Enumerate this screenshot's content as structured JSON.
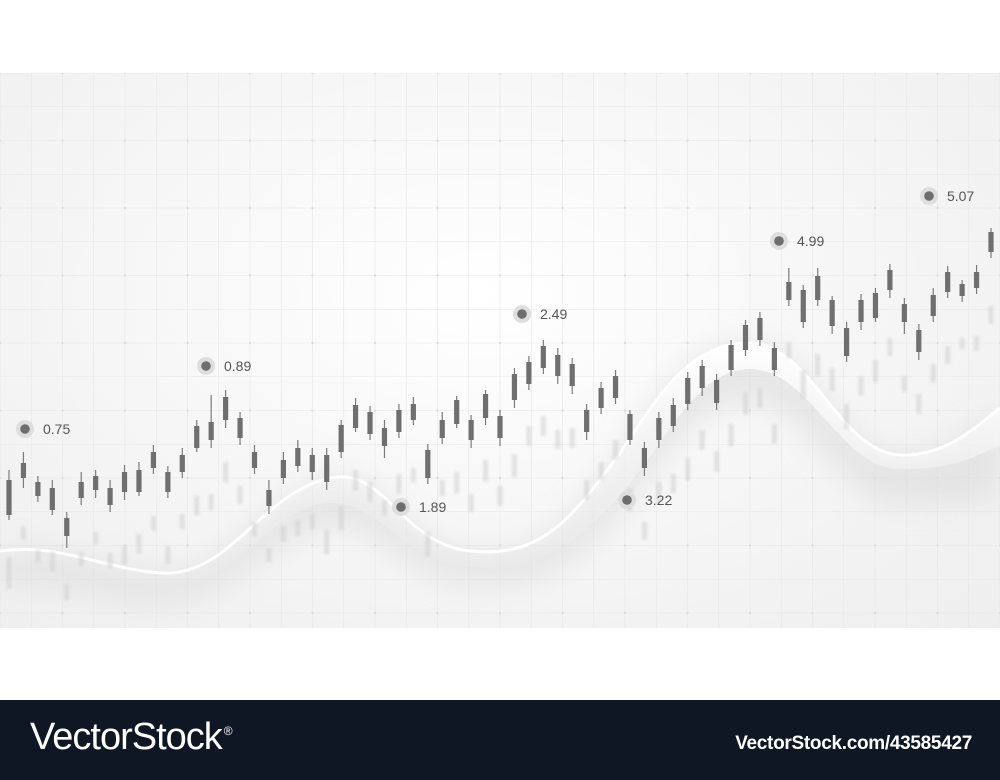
{
  "chart_data": {
    "type": "candlestick",
    "title": "",
    "xlabel": "",
    "ylabel": "",
    "grid": true,
    "annotations": [
      {
        "label": "0.75",
        "dot_color": "#6e6e6e"
      },
      {
        "label": "0.89",
        "dot_color": "#6e6e6e"
      },
      {
        "label": "1.89",
        "dot_color": "#6e6e6e"
      },
      {
        "label": "2.49",
        "dot_color": "#6e6e6e"
      },
      {
        "label": "3.22",
        "dot_color": "#6e6e6e"
      },
      {
        "label": "4.99",
        "dot_color": "#6e6e6e"
      },
      {
        "label": "5.07",
        "dot_color": "#6e6e6e"
      }
    ],
    "candles": [
      [
        480,
        515,
        470,
        520
      ],
      [
        478,
        463,
        452,
        488
      ],
      [
        482,
        496,
        476,
        502
      ],
      [
        488,
        510,
        480,
        515
      ],
      [
        518,
        536,
        512,
        548
      ],
      [
        498,
        482,
        472,
        505
      ],
      [
        490,
        476,
        470,
        498
      ],
      [
        488,
        505,
        480,
        512
      ],
      [
        472,
        492,
        465,
        500
      ],
      [
        470,
        492,
        462,
        496
      ],
      [
        452,
        468,
        445,
        474
      ],
      [
        472,
        492,
        466,
        498
      ],
      [
        455,
        472,
        448,
        478
      ],
      [
        448,
        426,
        420,
        452
      ],
      [
        422,
        440,
        395,
        448
      ],
      [
        420,
        397,
        390,
        428
      ],
      [
        418,
        438,
        412,
        445
      ],
      [
        452,
        468,
        445,
        474
      ],
      [
        490,
        506,
        480,
        514
      ],
      [
        460,
        478,
        452,
        484
      ],
      [
        448,
        466,
        440,
        472
      ],
      [
        472,
        455,
        448,
        480
      ],
      [
        455,
        482,
        448,
        490
      ],
      [
        425,
        452,
        420,
        458
      ],
      [
        428,
        405,
        398,
        432
      ],
      [
        412,
        434,
        406,
        440
      ],
      [
        428,
        446,
        420,
        458
      ],
      [
        410,
        432,
        404,
        438
      ],
      [
        420,
        404,
        397,
        425
      ],
      [
        450,
        478,
        444,
        484
      ],
      [
        420,
        438,
        412,
        444
      ],
      [
        424,
        400,
        396,
        428
      ],
      [
        420,
        440,
        415,
        448
      ],
      [
        418,
        394,
        390,
        425
      ],
      [
        416,
        438,
        410,
        446
      ],
      [
        374,
        400,
        368,
        408
      ],
      [
        362,
        384,
        356,
        390
      ],
      [
        346,
        368,
        340,
        374
      ],
      [
        355,
        376,
        348,
        384
      ],
      [
        364,
        386,
        358,
        394
      ],
      [
        410,
        432,
        404,
        440
      ],
      [
        388,
        408,
        382,
        414
      ],
      [
        376,
        398,
        370,
        404
      ],
      [
        440,
        414,
        410,
        445
      ],
      [
        448,
        468,
        442,
        476
      ],
      [
        418,
        440,
        412,
        448
      ],
      [
        405,
        426,
        398,
        432
      ],
      [
        378,
        404,
        372,
        410
      ],
      [
        366,
        388,
        360,
        396
      ],
      [
        380,
        403,
        374,
        410
      ],
      [
        345,
        370,
        340,
        376
      ],
      [
        325,
        350,
        320,
        356
      ],
      [
        318,
        340,
        312,
        346
      ],
      [
        348,
        370,
        342,
        376
      ],
      [
        300,
        282,
        268,
        306
      ],
      [
        290,
        322,
        285,
        328
      ],
      [
        300,
        276,
        268,
        306
      ],
      [
        300,
        326,
        296,
        334
      ],
      [
        328,
        356,
        322,
        362
      ],
      [
        300,
        322,
        294,
        330
      ],
      [
        293,
        318,
        288,
        322
      ],
      [
        290,
        270,
        264,
        298
      ],
      [
        304,
        322,
        298,
        334
      ],
      [
        330,
        352,
        324,
        360
      ],
      [
        316,
        295,
        288,
        322
      ],
      [
        292,
        272,
        266,
        298
      ],
      [
        296,
        284,
        280,
        302
      ],
      [
        288,
        272,
        265,
        294
      ],
      [
        252,
        232,
        228,
        258
      ]
    ]
  },
  "footer": {
    "brand": "VectorStock",
    "brand_mark": "®",
    "image_id": "VectorStock.com/43585427"
  }
}
